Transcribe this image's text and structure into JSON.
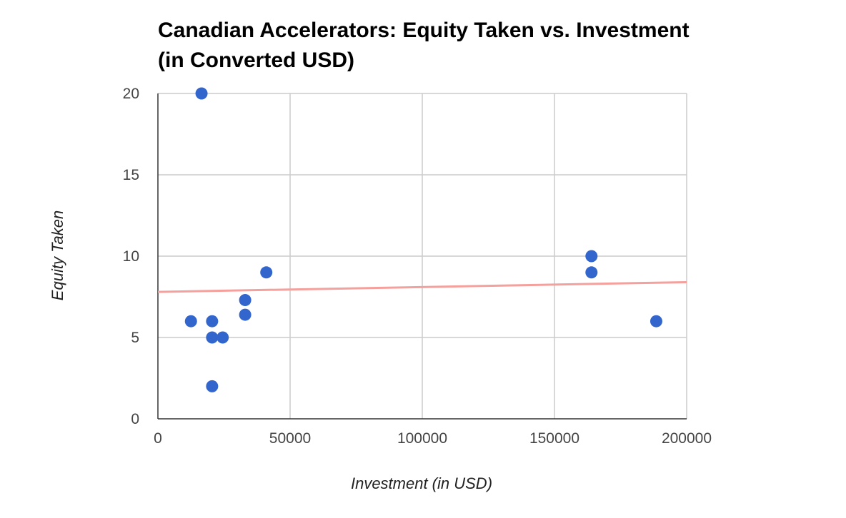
{
  "chart_data": {
    "type": "scatter",
    "title": "Canadian Accelerators: Equity Taken vs. Investment (in Converted USD)",
    "xlabel": "Investment (in USD)",
    "ylabel": "Equity Taken",
    "xlim": [
      0,
      200000
    ],
    "ylim": [
      0,
      20
    ],
    "xticks": [
      "0",
      "50000",
      "100000",
      "150000",
      "200000"
    ],
    "yticks": [
      "0",
      "5",
      "10",
      "15",
      "20"
    ],
    "grid": true,
    "legend": "none",
    "colors": {
      "points": "#3366cc",
      "trendline": "#f4a09c",
      "grid": "#cccccc",
      "axis": "#333333"
    },
    "series": [
      {
        "points": [
          {
            "x": 16500,
            "y": 20
          },
          {
            "x": 12500,
            "y": 6
          },
          {
            "x": 20500,
            "y": 6
          },
          {
            "x": 20500,
            "y": 5
          },
          {
            "x": 24500,
            "y": 5
          },
          {
            "x": 20500,
            "y": 2
          },
          {
            "x": 33000,
            "y": 7.3
          },
          {
            "x": 33000,
            "y": 6.4
          },
          {
            "x": 41000,
            "y": 9
          },
          {
            "x": 164000,
            "y": 10
          },
          {
            "x": 164000,
            "y": 9
          },
          {
            "x": 188500,
            "y": 6
          }
        ]
      }
    ],
    "trendline": {
      "type": "linear",
      "y_at_xmin": 7.8,
      "y_at_xmax": 8.4
    }
  }
}
